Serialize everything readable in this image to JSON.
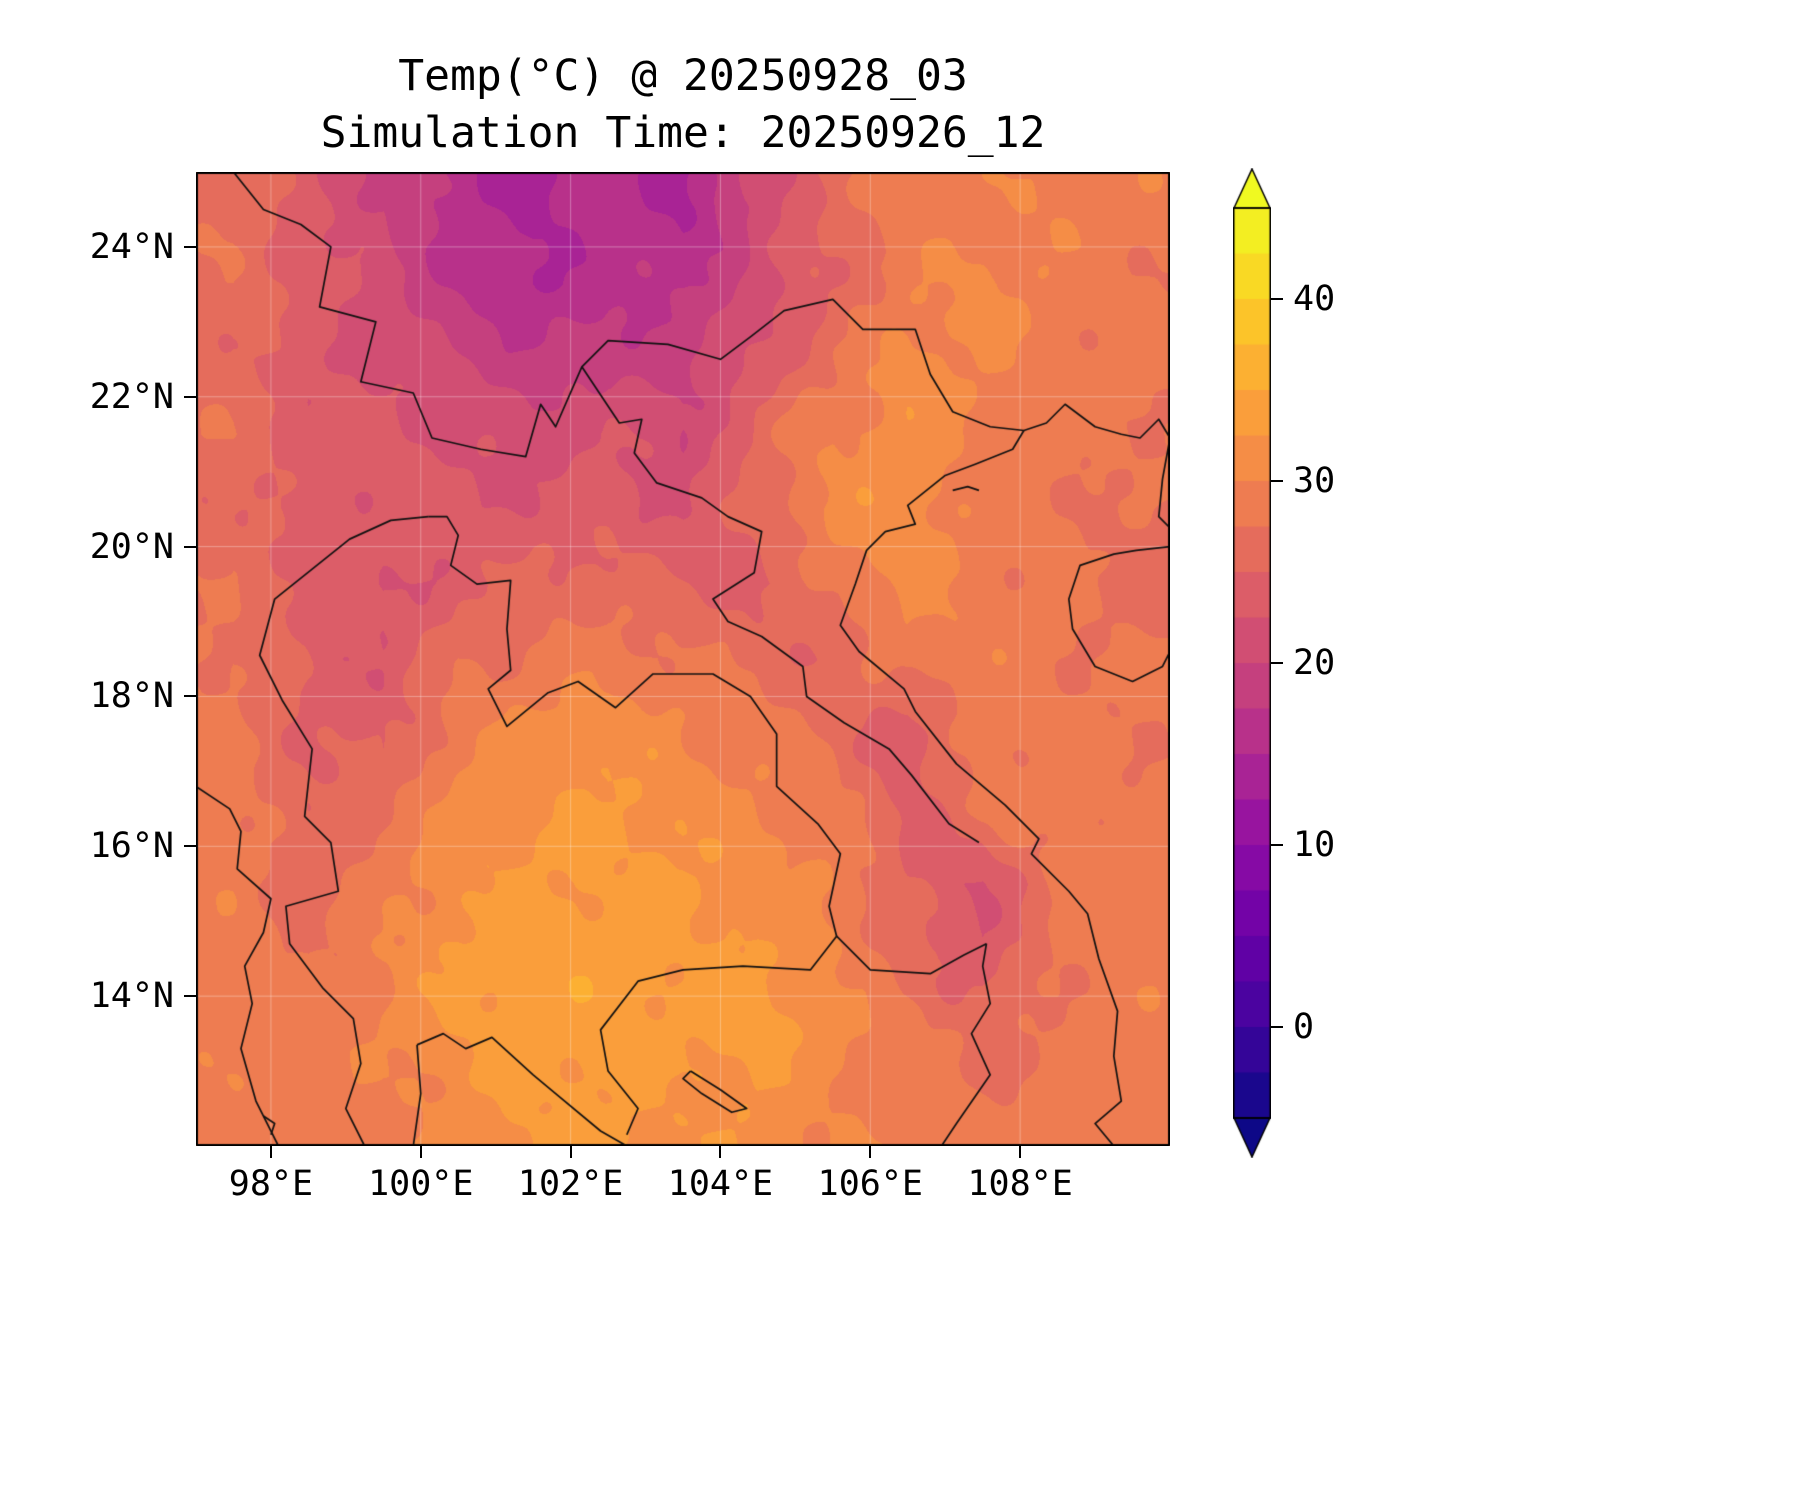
{
  "page": {
    "background": "#ffffff"
  },
  "chart_data": {
    "type": "heatmap",
    "title": "Temp(°C) @ 20250928_03",
    "subtitle": "Simulation Time: 20250926_12",
    "variable": "Temperature (°C)",
    "lon_range": [
      97,
      110
    ],
    "lat_range": [
      12,
      25
    ],
    "grid_on": true,
    "legend_position": "right-colorbar",
    "xticks": [
      {
        "value": 98,
        "label": "98°E"
      },
      {
        "value": 100,
        "label": "100°E"
      },
      {
        "value": 102,
        "label": "102°E"
      },
      {
        "value": 104,
        "label": "104°E"
      },
      {
        "value": 106,
        "label": "106°E"
      },
      {
        "value": 108,
        "label": "108°E"
      }
    ],
    "yticks": [
      {
        "value": 24,
        "label": "24°N"
      },
      {
        "value": 22,
        "label": "22°N"
      },
      {
        "value": 20,
        "label": "20°N"
      },
      {
        "value": 18,
        "label": "18°N"
      },
      {
        "value": 16,
        "label": "16°N"
      },
      {
        "value": 14,
        "label": "14°N"
      }
    ],
    "colorbar": {
      "min": -5,
      "max": 45,
      "step": 2.5,
      "extend": "both",
      "colormap": "plasma",
      "under_color": "#0d0887",
      "over_color": "#f0f921",
      "ticks": [
        {
          "value": 40,
          "label": "40"
        },
        {
          "value": 30,
          "label": "30"
        },
        {
          "value": 20,
          "label": "20"
        },
        {
          "value": 10,
          "label": "10"
        },
        {
          "value": 0,
          "label": "0"
        }
      ]
    },
    "colormap_stops": [
      "#0d0887",
      "#41049d",
      "#6a00a8",
      "#8f0da4",
      "#b12a90",
      "#cc4778",
      "#e16462",
      "#f2844b",
      "#fca636",
      "#fcce25",
      "#f0f921"
    ],
    "grid": {
      "lons": [
        97.5,
        98.5,
        99.5,
        100.5,
        101.5,
        102.5,
        103.5,
        104.5,
        105.5,
        106.5,
        107.5,
        108.5,
        109.5
      ],
      "lats": [
        24.5,
        23.5,
        22.5,
        21.5,
        20.5,
        19.5,
        18.5,
        17.5,
        16.5,
        15.5,
        14.5,
        13.5,
        12.5
      ],
      "values": [
        [
          27,
          23,
          20,
          16,
          14,
          17,
          14,
          21,
          26,
          29,
          29,
          30,
          29
        ],
        [
          27,
          24,
          21,
          17,
          15,
          16,
          17,
          21,
          25,
          29,
          31,
          29,
          28
        ],
        [
          26,
          23,
          22,
          20,
          18,
          19,
          19,
          23,
          27,
          31,
          30,
          29,
          28
        ],
        [
          27,
          24,
          23,
          22,
          21,
          23,
          20,
          26,
          30,
          32,
          29,
          28,
          28
        ],
        [
          26,
          23,
          24,
          23,
          23,
          24,
          22,
          26,
          31,
          32,
          29,
          28,
          27
        ],
        [
          27,
          25,
          22,
          24,
          26,
          26,
          25,
          24,
          28,
          31,
          29,
          28,
          26
        ],
        [
          28,
          24,
          23,
          27,
          28,
          29,
          28,
          27,
          25,
          29,
          29,
          28,
          28
        ],
        [
          28,
          25,
          24,
          29,
          31,
          32,
          30,
          29,
          27,
          23,
          29,
          28,
          28
        ],
        [
          29,
          25,
          27,
          31,
          32,
          33,
          32,
          30,
          29,
          24,
          28,
          29,
          28
        ],
        [
          29,
          26,
          29,
          32,
          33,
          33,
          33,
          31,
          30,
          25,
          22,
          28,
          29
        ],
        [
          29,
          27,
          30,
          33,
          34,
          34,
          33,
          33,
          30,
          26,
          23,
          28,
          29
        ],
        [
          29,
          29,
          30,
          33,
          34,
          34,
          33,
          34,
          31,
          29,
          26,
          28,
          29
        ],
        [
          29,
          29,
          29,
          31,
          33,
          33,
          32,
          32,
          30,
          29,
          28,
          29,
          29
        ]
      ]
    },
    "borders": [
      {
        "name": "china-myanmar-laos-vietnam-border",
        "points": [
          [
            97.5,
            25.0
          ],
          [
            97.9,
            24.5
          ],
          [
            98.4,
            24.3
          ],
          [
            98.8,
            24.0
          ],
          [
            98.65,
            23.2
          ],
          [
            99.4,
            23.0
          ],
          [
            99.2,
            22.2
          ],
          [
            99.9,
            22.05
          ],
          [
            100.15,
            21.45
          ],
          [
            100.8,
            21.3
          ],
          [
            101.4,
            21.2
          ],
          [
            101.6,
            21.9
          ],
          [
            101.8,
            21.6
          ],
          [
            102.15,
            22.4
          ],
          [
            102.5,
            22.75
          ],
          [
            103.3,
            22.7
          ],
          [
            104.0,
            22.5
          ],
          [
            104.4,
            22.8
          ],
          [
            104.85,
            23.15
          ],
          [
            105.5,
            23.3
          ],
          [
            105.9,
            22.9
          ],
          [
            106.6,
            22.9
          ],
          [
            106.8,
            22.3
          ],
          [
            107.1,
            21.8
          ],
          [
            107.6,
            21.6
          ],
          [
            108.05,
            21.55
          ]
        ]
      },
      {
        "name": "myanmar-thailand-border",
        "points": [
          [
            100.1,
            20.4
          ],
          [
            99.6,
            20.35
          ],
          [
            99.05,
            20.1
          ],
          [
            98.55,
            19.7
          ],
          [
            98.05,
            19.3
          ],
          [
            97.85,
            18.55
          ],
          [
            98.15,
            17.95
          ],
          [
            98.55,
            17.3
          ],
          [
            98.45,
            16.4
          ],
          [
            98.8,
            16.05
          ],
          [
            98.9,
            15.4
          ],
          [
            98.2,
            15.2
          ],
          [
            98.25,
            14.7
          ],
          [
            98.7,
            14.1
          ],
          [
            99.1,
            13.7
          ],
          [
            99.2,
            13.1
          ],
          [
            99.0,
            12.5
          ],
          [
            99.25,
            12.0
          ]
        ]
      },
      {
        "name": "thailand-laos-border",
        "points": [
          [
            100.1,
            20.4
          ],
          [
            100.35,
            20.4
          ],
          [
            100.5,
            20.15
          ],
          [
            100.4,
            19.75
          ],
          [
            100.75,
            19.5
          ],
          [
            101.2,
            19.55
          ],
          [
            101.15,
            18.9
          ],
          [
            101.2,
            18.35
          ],
          [
            100.9,
            18.1
          ],
          [
            101.15,
            17.6
          ],
          [
            101.7,
            18.05
          ],
          [
            102.1,
            18.2
          ],
          [
            102.6,
            17.85
          ],
          [
            103.1,
            18.3
          ],
          [
            103.9,
            18.3
          ],
          [
            104.4,
            18.0
          ],
          [
            104.75,
            17.5
          ],
          [
            104.75,
            16.8
          ],
          [
            105.3,
            16.3
          ],
          [
            105.6,
            15.9
          ],
          [
            105.45,
            15.2
          ],
          [
            105.55,
            14.8
          ]
        ]
      },
      {
        "name": "thailand-cambodia-border",
        "points": [
          [
            105.55,
            14.8
          ],
          [
            105.2,
            14.35
          ],
          [
            104.3,
            14.4
          ],
          [
            103.5,
            14.35
          ],
          [
            102.9,
            14.2
          ],
          [
            102.4,
            13.55
          ],
          [
            102.5,
            13.0
          ],
          [
            102.9,
            12.5
          ],
          [
            102.75,
            12.15
          ]
        ]
      },
      {
        "name": "laos-vietnam-border",
        "points": [
          [
            102.15,
            22.4
          ],
          [
            102.65,
            21.65
          ],
          [
            102.95,
            21.7
          ],
          [
            102.85,
            21.25
          ],
          [
            103.15,
            20.85
          ],
          [
            103.75,
            20.65
          ],
          [
            104.1,
            20.4
          ],
          [
            104.55,
            20.2
          ],
          [
            104.45,
            19.65
          ],
          [
            103.9,
            19.3
          ],
          [
            104.1,
            19.0
          ],
          [
            104.55,
            18.8
          ],
          [
            105.1,
            18.4
          ],
          [
            105.15,
            18.0
          ],
          [
            105.65,
            17.65
          ],
          [
            106.25,
            17.3
          ],
          [
            106.55,
            16.95
          ],
          [
            107.05,
            16.3
          ],
          [
            107.45,
            16.05
          ]
        ]
      },
      {
        "name": "laos-cambodia-border",
        "points": [
          [
            105.55,
            14.8
          ],
          [
            106.0,
            14.35
          ],
          [
            106.8,
            14.3
          ],
          [
            107.25,
            14.55
          ],
          [
            107.55,
            14.7
          ]
        ]
      },
      {
        "name": "cambodia-vietnam-border",
        "points": [
          [
            107.55,
            14.7
          ],
          [
            107.5,
            14.4
          ],
          [
            107.6,
            13.9
          ],
          [
            107.35,
            13.5
          ],
          [
            107.6,
            12.95
          ],
          [
            107.15,
            12.3
          ],
          [
            106.95,
            12.0
          ]
        ]
      },
      {
        "name": "vietnam-coastline",
        "points": [
          [
            108.05,
            21.55
          ],
          [
            107.9,
            21.3
          ],
          [
            107.4,
            21.1
          ],
          [
            107.0,
            20.95
          ],
          [
            106.75,
            20.75
          ],
          [
            106.5,
            20.55
          ],
          [
            106.6,
            20.3
          ],
          [
            106.2,
            20.2
          ],
          [
            105.95,
            19.95
          ],
          [
            105.8,
            19.5
          ],
          [
            105.6,
            18.95
          ],
          [
            105.85,
            18.6
          ],
          [
            106.45,
            18.1
          ],
          [
            106.6,
            17.8
          ],
          [
            107.15,
            17.1
          ],
          [
            107.8,
            16.55
          ],
          [
            108.25,
            16.1
          ],
          [
            108.15,
            15.9
          ],
          [
            108.65,
            15.4
          ],
          [
            108.9,
            15.1
          ],
          [
            109.05,
            14.5
          ],
          [
            109.3,
            13.8
          ],
          [
            109.25,
            13.2
          ],
          [
            109.35,
            12.6
          ],
          [
            109.0,
            12.3
          ],
          [
            109.25,
            12.0
          ]
        ]
      },
      {
        "name": "gulf-of-thailand-coastline",
        "points": [
          [
            99.95,
            13.35
          ],
          [
            100.3,
            13.5
          ],
          [
            100.6,
            13.3
          ],
          [
            100.95,
            13.45
          ],
          [
            101.5,
            12.95
          ],
          [
            101.8,
            12.7
          ],
          [
            102.4,
            12.2
          ],
          [
            102.75,
            12.0
          ]
        ]
      },
      {
        "name": "thai-peninsula-coastline",
        "points": [
          [
            99.95,
            13.35
          ],
          [
            100.0,
            12.7
          ],
          [
            99.9,
            12.0
          ]
        ]
      },
      {
        "name": "myanmar-coastline",
        "points": [
          [
            97.0,
            16.8
          ],
          [
            97.45,
            16.5
          ],
          [
            97.6,
            16.2
          ],
          [
            97.55,
            15.7
          ],
          [
            98.0,
            15.3
          ],
          [
            97.9,
            14.85
          ],
          [
            97.65,
            14.4
          ],
          [
            97.75,
            13.9
          ],
          [
            97.6,
            13.3
          ],
          [
            97.8,
            12.6
          ],
          [
            98.1,
            12.0
          ]
        ]
      },
      {
        "name": "china-coastline",
        "points": [
          [
            108.05,
            21.55
          ],
          [
            108.35,
            21.65
          ],
          [
            108.6,
            21.9
          ],
          [
            109.0,
            21.6
          ],
          [
            109.35,
            21.5
          ],
          [
            109.6,
            21.45
          ],
          [
            109.85,
            21.7
          ],
          [
            110.0,
            21.45
          ],
          [
            109.9,
            20.9
          ],
          [
            109.85,
            20.4
          ],
          [
            110.0,
            20.25
          ]
        ]
      },
      {
        "name": "hainan-coastline",
        "points": [
          [
            110.0,
            20.0
          ],
          [
            109.55,
            19.95
          ],
          [
            109.25,
            19.9
          ],
          [
            108.8,
            19.75
          ],
          [
            108.65,
            19.3
          ],
          [
            108.7,
            18.9
          ],
          [
            109.0,
            18.4
          ],
          [
            109.5,
            18.2
          ],
          [
            109.9,
            18.4
          ],
          [
            110.0,
            18.6
          ]
        ]
      },
      {
        "name": "tonle-sap-lake",
        "points": [
          [
            103.6,
            13.0
          ],
          [
            104.0,
            12.75
          ],
          [
            104.35,
            12.5
          ],
          [
            104.15,
            12.45
          ],
          [
            103.75,
            12.7
          ],
          [
            103.5,
            12.9
          ],
          [
            103.6,
            13.0
          ]
        ]
      },
      {
        "name": "halong-islands",
        "points": [
          [
            107.1,
            20.75
          ],
          [
            107.3,
            20.8
          ],
          [
            107.45,
            20.75
          ]
        ]
      },
      {
        "name": "myeik-islands",
        "points": [
          [
            97.9,
            12.4
          ],
          [
            98.05,
            12.3
          ],
          [
            98.0,
            12.15
          ]
        ]
      }
    ]
  }
}
